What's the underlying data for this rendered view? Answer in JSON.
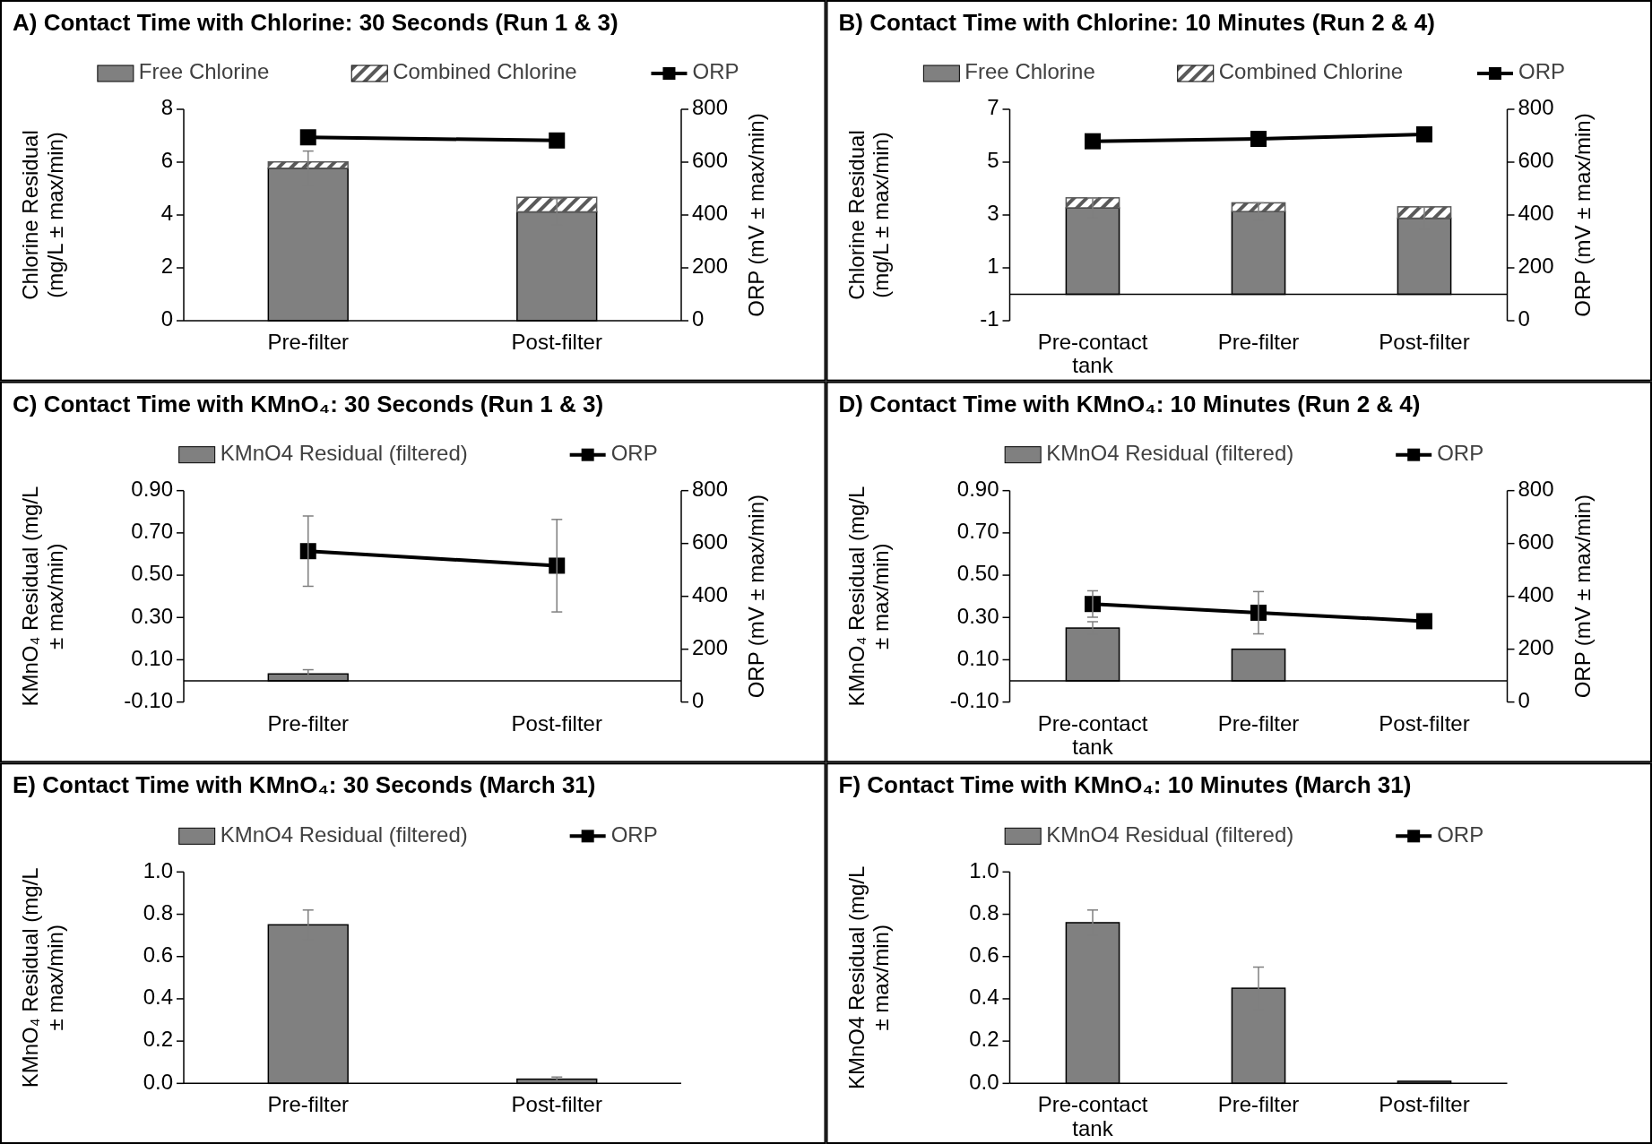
{
  "chart_data": [
    {
      "type": "bar",
      "title": "A) Contact Time with Chlorine: 30 Seconds (Run 1 & 3)",
      "categories": [
        "Pre-filter",
        "Post-filter"
      ],
      "ylabel": "Chlorine Residual (mg/L ± max/min)",
      "y2label": "ORP (mV ± max/min)",
      "ylim": [
        0,
        8
      ],
      "yticks": [
        0,
        2,
        4,
        6,
        8
      ],
      "y2lim": [
        0,
        800
      ],
      "y2ticks": [
        0,
        200,
        400,
        600,
        800
      ],
      "stacked": true,
      "legend": "top",
      "marker": "square",
      "series": [
        {
          "name": "Free Chlorine",
          "color": "#808080",
          "values": [
            5.77,
            4.12
          ],
          "errors": [
            0.65,
            0.5
          ]
        },
        {
          "name": "Combined Chlorine",
          "color": "#595959",
          "values": [
            0.24,
            0.55
          ]
        },
        {
          "name": "ORP",
          "type": "line",
          "axis": "y2",
          "color": "#000000",
          "values": [
            694,
            682
          ]
        }
      ]
    },
    {
      "type": "bar",
      "title": "B) Contact Time with Chlorine: 10 Minutes (Run 2 & 4)",
      "categories": [
        "Pre-contact tank",
        "Pre-filter",
        "Post-filter"
      ],
      "ylabel": "Chlorine Residual (mg/L ± max/min)",
      "y2label": "ORP (mV ± max/min)",
      "ylim": [
        -1,
        7
      ],
      "yticks": [
        -1,
        1,
        3,
        5,
        7
      ],
      "y2lim": [
        0,
        800
      ],
      "y2ticks": [
        0,
        200,
        400,
        600,
        800
      ],
      "stacked": true,
      "legend": "top",
      "marker": "square",
      "series": [
        {
          "name": "Free Chlorine",
          "color": "#808080",
          "values": [
            3.27,
            3.13,
            2.88
          ],
          "errors": [
            0.38,
            0.33,
            0.42
          ]
        },
        {
          "name": "Combined Chlorine",
          "color": "#595959",
          "values": [
            0.38,
            0.33,
            0.43
          ]
        },
        {
          "name": "ORP",
          "type": "line",
          "axis": "y2",
          "color": "#000000",
          "values": [
            679,
            688,
            705
          ]
        }
      ]
    },
    {
      "type": "bar",
      "title": "C) Contact Time with KMnO₄: 30 Seconds (Run 1 & 3)",
      "categories": [
        "Pre-filter",
        "Post-filter"
      ],
      "ylabel": "KMnO₄ Residual (mg/L ± max/min)",
      "y2label": "ORP (mV ± max/min)",
      "ylim": [
        -0.1,
        0.9
      ],
      "yticks": [
        {
          "value": -0.1,
          "label": "-0.10"
        },
        {
          "value": 0.1,
          "label": "0.10"
        },
        {
          "value": 0.3,
          "label": "0.30"
        },
        {
          "value": 0.5,
          "label": "0.50"
        },
        {
          "value": 0.7,
          "label": "0.70"
        },
        {
          "value": 0.9,
          "label": "0.90"
        }
      ],
      "y2lim": [
        0,
        800
      ],
      "y2ticks": [
        0,
        200,
        400,
        600,
        800
      ],
      "legend": "top",
      "marker": "square",
      "series": [
        {
          "name": "KMnO4 Residual (filtered)",
          "color": "#808080",
          "values": [
            0.033,
            0
          ],
          "errors": [
            0.02,
            null
          ]
        },
        {
          "name": "ORP",
          "type": "line",
          "axis": "y2",
          "color": "#000000",
          "values": [
            571,
            516
          ],
          "errors": [
            133,
            175
          ]
        }
      ]
    },
    {
      "type": "bar",
      "title": "D) Contact Time with KMnO₄: 10 Minutes (Run 2 & 4)",
      "categories": [
        "Pre-contact tank",
        "Pre-filter",
        "Post-filter"
      ],
      "ylabel": "KMnO₄ Residual (mg/L ± max/min)",
      "y2label": "ORP (mV ± max/min)",
      "ylim": [
        -0.1,
        0.9
      ],
      "yticks": [
        {
          "value": -0.1,
          "label": "-0.10"
        },
        {
          "value": 0.1,
          "label": "0.10"
        },
        {
          "value": 0.3,
          "label": "0.30"
        },
        {
          "value": 0.5,
          "label": "0.50"
        },
        {
          "value": 0.7,
          "label": "0.70"
        },
        {
          "value": 0.9,
          "label": "0.90"
        }
      ],
      "y2lim": [
        0,
        800
      ],
      "y2ticks": [
        0,
        200,
        400,
        600,
        800
      ],
      "legend": "top",
      "marker": "square",
      "series": [
        {
          "name": "KMnO4 Residual (filtered)",
          "color": "#808080",
          "values": [
            0.25,
            0.15,
            0
          ],
          "errors": [
            0.03,
            null,
            null
          ]
        },
        {
          "name": "ORP",
          "type": "line",
          "axis": "y2",
          "color": "#000000",
          "values": [
            371,
            338,
            306
          ],
          "errors": [
            50,
            80,
            null
          ]
        }
      ]
    },
    {
      "type": "bar",
      "title": "E) Contact Time with KMnO₄: 30 Seconds (March 31)",
      "categories": [
        "Pre-filter",
        "Post-filter"
      ],
      "ylabel": "KMnO₄ Residual (mg/L ± max/min)",
      "ylim": [
        0,
        1
      ],
      "yticks": [
        {
          "value": 0,
          "label": "0.0"
        },
        {
          "value": 0.2,
          "label": "0.2"
        },
        {
          "value": 0.4,
          "label": "0.4"
        },
        {
          "value": 0.6,
          "label": "0.6"
        },
        {
          "value": 0.8,
          "label": "0.8"
        },
        {
          "value": 1,
          "label": "1.0"
        }
      ],
      "legend": "top",
      "marker": "square",
      "series": [
        {
          "name": "KMnO4 Residual (filtered)",
          "color": "#808080",
          "values": [
            0.75,
            0.02
          ],
          "errors": [
            0.07,
            0.01
          ]
        },
        {
          "name": "ORP",
          "type": "line",
          "color": "#000000",
          "values": [
            null,
            null
          ]
        }
      ]
    },
    {
      "type": "bar",
      "title": "F) Contact Time with KMnO₄: 10 Minutes (March 31)",
      "categories": [
        "Pre-contact tank",
        "Pre-filter",
        "Post-filter"
      ],
      "ylabel": "KMnO4 Residual (mg/L ± max/min)",
      "ylim": [
        0,
        1
      ],
      "yticks": [
        {
          "value": 0,
          "label": "0.0"
        },
        {
          "value": 0.2,
          "label": "0.2"
        },
        {
          "value": 0.4,
          "label": "0.4"
        },
        {
          "value": 0.6,
          "label": "0.6"
        },
        {
          "value": 0.8,
          "label": "0.8"
        },
        {
          "value": 1,
          "label": "1.0"
        }
      ],
      "legend": "top",
      "marker": "square",
      "series": [
        {
          "name": "KMnO4 Residual (filtered)",
          "color": "#808080",
          "values": [
            0.76,
            0.45,
            0.01
          ],
          "errors": [
            0.06,
            0.1,
            null
          ]
        },
        {
          "name": "ORP",
          "type": "line",
          "color": "#000000",
          "values": [
            null,
            null,
            null
          ]
        }
      ]
    }
  ]
}
